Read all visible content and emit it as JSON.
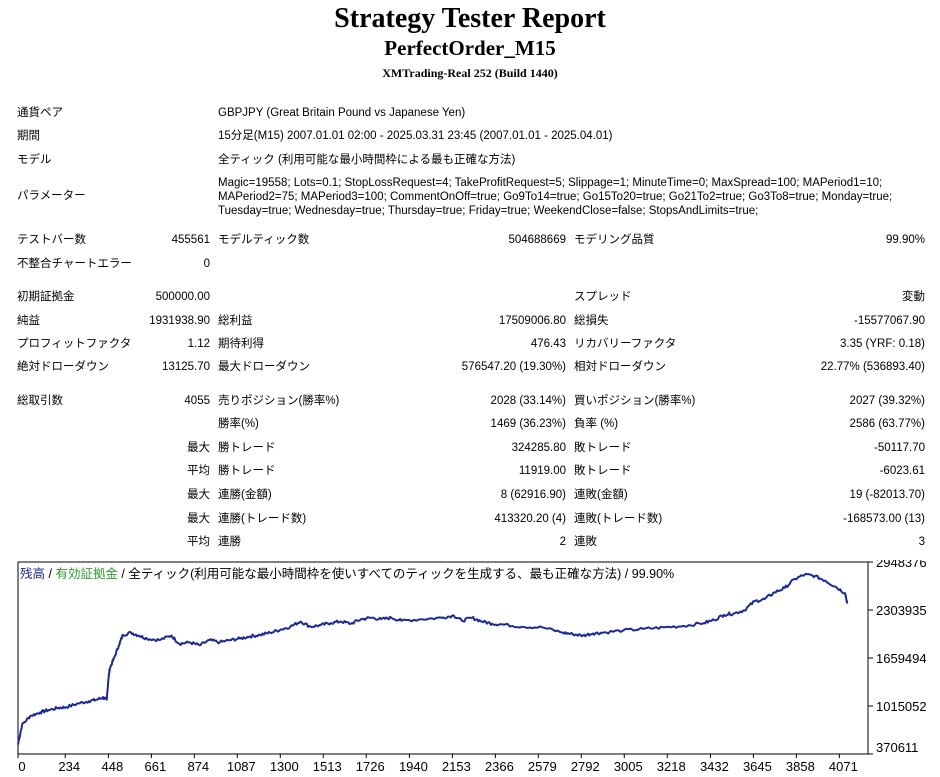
{
  "header": {
    "title": "Strategy Tester Report",
    "ea_name": "PerfectOrder_M15",
    "server": "XMTrading-Real 252 (Build 1440)"
  },
  "settings": [
    {
      "label": "通貨ペア",
      "value": "GBPJPY (Great Britain Pound vs Japanese Yen)"
    },
    {
      "label": "期間",
      "value": "15分足(M15) 2007.01.01 02:00 - 2025.03.31 23:45 (2007.01.01 - 2025.04.01)"
    },
    {
      "label": "モデル",
      "value": "全ティック (利用可能な最小時間枠による最も正確な方法)"
    }
  ],
  "parameters": {
    "label": "パラメーター",
    "value": "Magic=19558; Lots=0.1; StopLossRequest=4; TakeProfitRequest=5; Slippage=1; MinuteTime=0; MaxSpread=100; MAPeriod1=10; MAPeriod2=75; MAPeriod3=100; CommentOnOff=true; Go9To14=true; Go15To20=true; Go21To2=true; Go3To8=true; Monday=true; Tuesday=true; Wednesday=true; Thursday=true; Friday=true; WeekendClose=false; StopsAndLimits=true;"
  },
  "stats": {
    "bars_label": "テストバー数",
    "bars": "455561",
    "ticks_label": "モデルティック数",
    "ticks": "504688669",
    "quality_label": "モデリング品質",
    "quality": "99.90%",
    "mismatch_label": "不整合チャートエラー",
    "mismatch": "0",
    "deposit_label": "初期証拠金",
    "deposit": "500000.00",
    "spread_label": "スプレッド",
    "spread": "変動",
    "net_label": "純益",
    "net": "1931938.90",
    "gross_profit_label": "総利益",
    "gross_profit": "17509006.80",
    "gross_loss_label": "総損失",
    "gross_loss": "-15577067.90",
    "pf_label": "プロフィットファクタ",
    "pf": "1.12",
    "expected_label": "期待利得",
    "expected": "476.43",
    "recovery_label": "リカバリーファクタ",
    "recovery": "3.35 (YRF: 0.18)",
    "abs_dd_label": "絶対ドローダウン",
    "abs_dd": "13125.70",
    "max_dd_label": "最大ドローダウン",
    "max_dd": "576547.20 (19.30%)",
    "rel_dd_label": "相対ドローダウン",
    "rel_dd": "22.77% (536893.40)",
    "trades_label": "総取引数",
    "trades": "4055",
    "short_label": "売りポジション(勝率%)",
    "short": "2028 (33.14%)",
    "long_label": "買いポジション(勝率%)",
    "long": "2027 (39.32%)",
    "win_label": "勝率(%)",
    "win": "1469 (36.23%)",
    "loss_label": "負率 (%)",
    "loss": "2586 (63.77%)",
    "max_prefix": "最大",
    "avg_prefix": "平均",
    "max_win_label": "勝トレード",
    "max_win": "324285.80",
    "max_loss_label": "敗トレード",
    "max_loss": "-50117.70",
    "avg_win_label": "勝トレード",
    "avg_win": "11919.00",
    "avg_loss_label": "敗トレード",
    "avg_loss": "-6023.61",
    "cons_win_amt_label": "連勝(金額)",
    "cons_win_amt": "8 (62916.90)",
    "cons_loss_amt_label": "連敗(金額)",
    "cons_loss_amt": "19 (-82013.70)",
    "cons_win_cnt_label": "連勝(トレード数)",
    "cons_win_cnt": "413320.20 (4)",
    "cons_loss_cnt_label": "連敗(トレード数)",
    "cons_loss_cnt": "-168573.00 (13)",
    "avg_cons_win_label": "連勝",
    "avg_cons_win": "2",
    "avg_cons_loss_label": "連敗",
    "avg_cons_loss": "3"
  },
  "legend": {
    "balance": "残高",
    "sep1": " / ",
    "equity": "有効証拠金",
    "rest": " / 全ティック(利用可能な最小時間枠を使いすべてのティックを生成する、最も正確な方法) / 99.90%"
  },
  "colors": {
    "balance": "#1a2a99",
    "equity": "#2e9a2e",
    "grid": "#000000"
  },
  "chart_data": {
    "type": "line",
    "x_ticks": [
      "0",
      "234",
      "448",
      "661",
      "874",
      "1087",
      "1300",
      "1513",
      "1726",
      "1940",
      "2153",
      "2366",
      "2579",
      "2792",
      "3005",
      "3218",
      "3432",
      "3645",
      "3858",
      "4071"
    ],
    "y_ticks": [
      "2948376",
      "2303935",
      "1659494",
      "1015052",
      "370611"
    ],
    "xlim": [
      0,
      4213
    ],
    "ylim": [
      370611,
      2948376
    ],
    "series": [
      {
        "values": [
          [
            0,
            500000
          ],
          [
            20,
            760000
          ],
          [
            60,
            880000
          ],
          [
            110,
            930000
          ],
          [
            150,
            960000
          ],
          [
            200,
            990000
          ],
          [
            240,
            1000000
          ],
          [
            300,
            1050000
          ],
          [
            350,
            1080000
          ],
          [
            390,
            1100000
          ],
          [
            420,
            1130000
          ],
          [
            440,
            1100000
          ],
          [
            448,
            1380000
          ],
          [
            455,
            1520000
          ],
          [
            475,
            1650000
          ],
          [
            500,
            1830000
          ],
          [
            520,
            1970000
          ],
          [
            560,
            2000000
          ],
          [
            600,
            1960000
          ],
          [
            640,
            1920000
          ],
          [
            700,
            1900000
          ],
          [
            760,
            1960000
          ],
          [
            800,
            1850000
          ],
          [
            850,
            1870000
          ],
          [
            900,
            1830000
          ],
          [
            950,
            1900000
          ],
          [
            1000,
            1870000
          ],
          [
            1050,
            1900000
          ],
          [
            1100,
            1920000
          ],
          [
            1150,
            1950000
          ],
          [
            1200,
            1970000
          ],
          [
            1250,
            2000000
          ],
          [
            1300,
            2040000
          ],
          [
            1350,
            2080000
          ],
          [
            1400,
            2150000
          ],
          [
            1450,
            2080000
          ],
          [
            1500,
            2100000
          ],
          [
            1550,
            2130000
          ],
          [
            1600,
            2150000
          ],
          [
            1650,
            2120000
          ],
          [
            1700,
            2180000
          ],
          [
            1750,
            2200000
          ],
          [
            1800,
            2180000
          ],
          [
            1850,
            2200000
          ],
          [
            1900,
            2160000
          ],
          [
            2000,
            2180000
          ],
          [
            2100,
            2200000
          ],
          [
            2160,
            2230000
          ],
          [
            2200,
            2160000
          ],
          [
            2250,
            2200000
          ],
          [
            2300,
            2150000
          ],
          [
            2350,
            2120000
          ],
          [
            2400,
            2110000
          ],
          [
            2500,
            2080000
          ],
          [
            2600,
            2070000
          ],
          [
            2700,
            2000000
          ],
          [
            2750,
            1980000
          ],
          [
            2800,
            1960000
          ],
          [
            2850,
            1990000
          ],
          [
            2900,
            2000000
          ],
          [
            3000,
            2030000
          ],
          [
            3100,
            2050000
          ],
          [
            3200,
            2070000
          ],
          [
            3300,
            2090000
          ],
          [
            3400,
            2130000
          ],
          [
            3450,
            2170000
          ],
          [
            3500,
            2240000
          ],
          [
            3550,
            2260000
          ],
          [
            3600,
            2300000
          ],
          [
            3650,
            2420000
          ],
          [
            3700,
            2450000
          ],
          [
            3750,
            2540000
          ],
          [
            3800,
            2600000
          ],
          [
            3850,
            2720000
          ],
          [
            3900,
            2780000
          ],
          [
            3950,
            2760000
          ],
          [
            4000,
            2700000
          ],
          [
            4050,
            2620000
          ],
          [
            4100,
            2530000
          ],
          [
            4110,
            2390000
          ]
        ]
      }
    ]
  }
}
